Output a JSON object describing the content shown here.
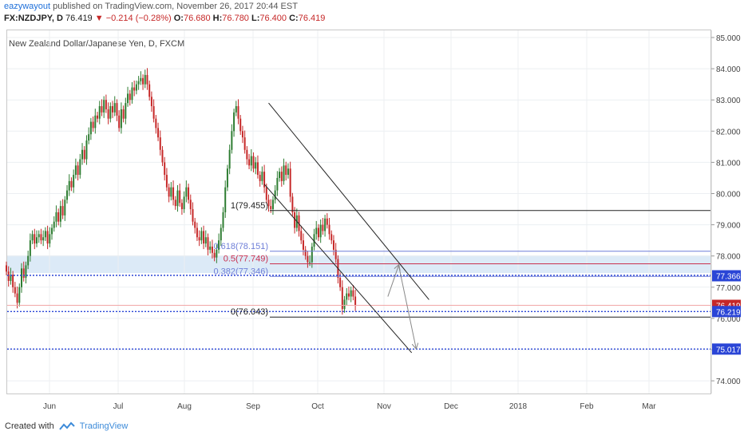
{
  "header": {
    "author": "eazywayout",
    "published_text": "published on TradingView.com, November 26, 2017 20:44 EST"
  },
  "ticker": {
    "symbol": "FX:NZDJPY, D",
    "last": "76.419",
    "change": "−0.214 (−0.28%)",
    "open_label": "O:",
    "open": "76.680",
    "high_label": "H:",
    "high": "76.780",
    "low_label": "L:",
    "low": "76.400",
    "close_label": "C:",
    "close": "76.419"
  },
  "chart_title": "New Zealand Dollar/Japanese Yen, D, FXCM",
  "footer": {
    "created_with": "Created with",
    "brand": "TradingView"
  },
  "colors": {
    "up": "#2e7d32",
    "down": "#c62828",
    "blue": "#2a45d6",
    "fib": "#6f7fd8",
    "fib_mid": "#c9304f"
  },
  "chart_data": {
    "type": "candlestick",
    "y_range": [
      73.4,
      85.2
    ],
    "y_ticks": [
      "85.000",
      "84.000",
      "83.000",
      "82.000",
      "81.000",
      "80.000",
      "79.000",
      "78.000",
      "77.000",
      "76.000",
      "75.000",
      "74.000"
    ],
    "y_tick_values": [
      85,
      84,
      83,
      82,
      81,
      80,
      79,
      78,
      77,
      76,
      75,
      74
    ],
    "x_tick_labels": [
      "Jun",
      "Jul",
      "Aug",
      "Sep",
      "Oct",
      "Nov",
      "Dec",
      "2018",
      "Feb",
      "Mar"
    ],
    "price_badges": [
      {
        "text": "77.366",
        "value": 77.366,
        "style": "blue"
      },
      {
        "text": "76.419",
        "value": 76.419,
        "style": "red"
      },
      {
        "text": "76.219",
        "value": 76.219,
        "style": "blue"
      },
      {
        "text": "75.017",
        "value": 75.017,
        "style": "blue"
      }
    ],
    "fib_levels": [
      {
        "label": "1(79.455)",
        "value": 79.455,
        "kind": "black"
      },
      {
        "label": "0.618(78.151)",
        "value": 78.151,
        "kind": "fib"
      },
      {
        "label": "0.5(77.749)",
        "value": 77.749,
        "kind": "fib_mid"
      },
      {
        "label": "0.382(77.346)",
        "value": 77.346,
        "kind": "fib"
      },
      {
        "label": "0(76.043)",
        "value": 76.043,
        "kind": "black"
      }
    ],
    "start_price": 77.7,
    "closes": [
      77.5,
      77.2,
      77.4,
      77.0,
      76.8,
      76.5,
      77.0,
      77.6,
      77.3,
      77.7,
      78.0,
      78.5,
      78.7,
      78.4,
      78.6,
      78.7,
      78.5,
      78.6,
      78.8,
      78.4,
      78.7,
      78.9,
      79.1,
      79.4,
      79.1,
      79.6,
      79.3,
      79.8,
      80.1,
      80.4,
      80.2,
      80.6,
      80.9,
      80.6,
      81.1,
      81.4,
      81.1,
      81.7,
      81.9,
      82.3,
      82.1,
      82.5,
      82.4,
      82.8,
      82.6,
      83.0,
      82.7,
      82.4,
      82.8,
      82.6,
      82.9,
      82.5,
      82.1,
      82.7,
      82.4,
      82.9,
      83.2,
      83.0,
      83.4,
      83.3,
      83.5,
      83.6,
      83.7,
      83.5,
      83.8,
      83.5,
      83.1,
      82.8,
      82.4,
      82.1,
      81.8,
      81.4,
      81.0,
      80.6,
      80.2,
      79.9,
      80.2,
      79.8,
      79.6,
      80.1,
      79.7,
      79.5,
      79.9,
      80.2,
      79.8,
      79.5,
      79.1,
      78.9,
      78.6,
      78.5,
      78.8,
      78.4,
      78.6,
      78.2,
      78.3,
      78.1,
      77.95,
      78.2,
      78.5,
      78.9,
      79.4,
      80.2,
      80.8,
      81.4,
      82.0,
      82.6,
      82.8,
      82.4,
      82.0,
      81.8,
      81.4,
      81.1,
      80.9,
      81.2,
      80.8,
      81.0,
      80.6,
      80.4,
      80.7,
      80.2,
      79.8,
      79.6,
      79.5,
      79.8,
      80.1,
      80.5,
      80.7,
      80.4,
      80.9,
      80.6,
      80.8,
      79.9,
      79.4,
      78.9,
      79.3,
      78.8,
      78.5,
      78.2,
      78.0,
      77.8,
      77.8,
      78.3,
      78.7,
      78.9,
      78.6,
      79.0,
      78.8,
      79.2,
      79.0,
      78.7,
      78.5,
      78.2,
      77.9,
      77.3,
      77.0,
      76.3,
      76.6,
      76.8,
      76.7,
      76.9,
      76.7,
      76.419
    ],
    "channel_upper": {
      "from": {
        "date_index": 121,
        "price": 82.9
      },
      "to": {
        "date_index": 195,
        "price": 76.6
      }
    },
    "channel_lower": {
      "from": {
        "date_index": 119,
        "price": 80.3
      },
      "to": {
        "date_index": 187,
        "price": 74.9
      }
    },
    "projection": [
      {
        "date_index": 176,
        "price": 76.7
      },
      {
        "date_index": 181,
        "price": 77.7
      },
      {
        "date_index": 189,
        "price": 75.05
      }
    ]
  }
}
